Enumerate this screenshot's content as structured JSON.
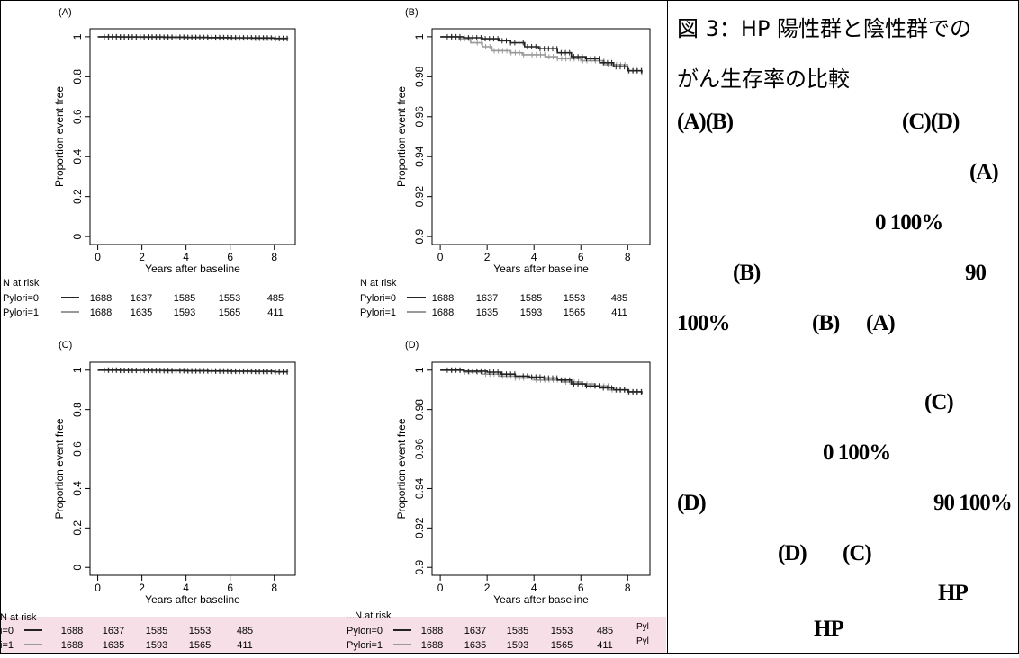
{
  "chart_data": [
    {
      "type": "line",
      "panel_label": "(A)",
      "xlabel": "Years after baseline",
      "ylabel": "Proportion event free",
      "xlim": [
        0,
        8.6
      ],
      "ylim": [
        0,
        1
      ],
      "x_ticks": [
        "0",
        "2",
        "4",
        "6",
        "8"
      ],
      "y_ticks": [
        "0",
        "0.2",
        "0.4",
        "0.6",
        "0.8",
        "1"
      ],
      "series": [
        {
          "name": "Pylori=0",
          "color": "#222222",
          "x": [
            0,
            1,
            2,
            3,
            4,
            5,
            6,
            7,
            8,
            8.6
          ],
          "y": [
            1.0,
            0.999,
            0.999,
            0.998,
            0.997,
            0.996,
            0.995,
            0.994,
            0.992,
            0.991
          ]
        },
        {
          "name": "Pylori=1",
          "color": "#999999",
          "x": [
            0,
            1,
            2,
            3,
            4,
            5,
            6,
            7,
            8,
            8.6
          ],
          "y": [
            1.0,
            0.998,
            0.997,
            0.996,
            0.995,
            0.994,
            0.993,
            0.992,
            0.99,
            0.989
          ]
        }
      ],
      "at_risk": {
        "title": "N at risk",
        "rows": [
          {
            "label": "Pylori=0",
            "values": [
              "1688",
              "1637",
              "1585",
              "1553",
              "485"
            ]
          },
          {
            "label": "Pylori=1",
            "values": [
              "1688",
              "1635",
              "1593",
              "1565",
              "411"
            ]
          }
        ]
      }
    },
    {
      "type": "line",
      "panel_label": "(B)",
      "xlabel": "Years after baseline",
      "ylabel": "Proportion event free",
      "xlim": [
        0,
        8.6
      ],
      "ylim": [
        0.9,
        1
      ],
      "x_ticks": [
        "0",
        "2",
        "4",
        "6",
        "8"
      ],
      "y_ticks": [
        "0.9",
        "0.92",
        "0.94",
        "0.96",
        "0.98",
        "1"
      ],
      "series": [
        {
          "name": "Pylori=0",
          "color": "#222222",
          "x": [
            0,
            1,
            1.8,
            2.5,
            3,
            3.6,
            4.2,
            5,
            5.6,
            6.2,
            6.8,
            7.4,
            8,
            8.6
          ],
          "y": [
            1.0,
            0.9995,
            0.999,
            0.998,
            0.997,
            0.995,
            0.994,
            0.992,
            0.99,
            0.989,
            0.987,
            0.985,
            0.983,
            0.982
          ]
        },
        {
          "name": "Pylori=1",
          "color": "#999999",
          "x": [
            0,
            0.8,
            1.3,
            1.8,
            2.2,
            3,
            3.5,
            4,
            4.5,
            5,
            6,
            7,
            8,
            8.6
          ],
          "y": [
            1.0,
            0.999,
            0.997,
            0.995,
            0.993,
            0.992,
            0.991,
            0.991,
            0.99,
            0.989,
            0.988,
            0.986,
            0.983,
            0.981
          ]
        }
      ],
      "at_risk": {
        "title": "N at risk",
        "rows": [
          {
            "label": "Pylori=0",
            "values": [
              "1688",
              "1637",
              "1585",
              "1553",
              "485"
            ]
          },
          {
            "label": "Pylori=1",
            "values": [
              "1688",
              "1635",
              "1593",
              "1565",
              "411"
            ]
          }
        ]
      }
    },
    {
      "type": "line",
      "panel_label": "(C)",
      "xlabel": "Years after baseline",
      "ylabel": "Proportion event free",
      "xlim": [
        0,
        8.6
      ],
      "ylim": [
        0,
        1
      ],
      "x_ticks": [
        "0",
        "2",
        "4",
        "6",
        "8"
      ],
      "y_ticks": [
        "0",
        "0.2",
        "0.4",
        "0.6",
        "0.8",
        "1"
      ],
      "series": [
        {
          "name": "Pylori=0",
          "color": "#222222",
          "x": [
            0,
            1,
            2,
            3,
            4,
            5,
            6,
            7,
            8,
            8.6
          ],
          "y": [
            1.0,
            0.999,
            0.999,
            0.998,
            0.997,
            0.996,
            0.995,
            0.994,
            0.992,
            0.991
          ]
        },
        {
          "name": "Pylori=1",
          "color": "#999999",
          "x": [
            0,
            1,
            2,
            3,
            4,
            5,
            6,
            7,
            8,
            8.6
          ],
          "y": [
            1.0,
            0.998,
            0.997,
            0.996,
            0.995,
            0.994,
            0.993,
            0.992,
            0.99,
            0.989
          ]
        }
      ],
      "at_risk": {
        "title": "N at risk",
        "rows": [
          {
            "label": "i=0",
            "values": [
              "1688",
              "1637",
              "1585",
              "1553",
              "485"
            ]
          },
          {
            "label": "i=1",
            "values": [
              "1688",
              "1635",
              "1593",
              "1565",
              "411"
            ]
          }
        ]
      }
    },
    {
      "type": "line",
      "panel_label": "(D)",
      "xlabel": "Years after baseline",
      "ylabel": "Proportion event free",
      "xlim": [
        0,
        8.6
      ],
      "ylim": [
        0.9,
        1
      ],
      "x_ticks": [
        "0",
        "2",
        "4",
        "6",
        "8"
      ],
      "y_ticks": [
        "0.9",
        "0.92",
        "0.94",
        "0.96",
        "0.98",
        "1"
      ],
      "series": [
        {
          "name": "Pylori=0",
          "color": "#222222",
          "x": [
            0,
            1,
            2,
            2.6,
            3.2,
            3.8,
            4.4,
            5,
            5.6,
            6.2,
            6.8,
            7.4,
            8,
            8.6
          ],
          "y": [
            1.0,
            0.9995,
            0.999,
            0.998,
            0.997,
            0.9965,
            0.996,
            0.995,
            0.993,
            0.992,
            0.991,
            0.99,
            0.989,
            0.988
          ]
        },
        {
          "name": "Pylori=1",
          "color": "#999999",
          "x": [
            0,
            1,
            1.8,
            2.5,
            3.2,
            4,
            4.6,
            5.2,
            6,
            6.6,
            7.2,
            8,
            8.6
          ],
          "y": [
            1.0,
            0.999,
            0.998,
            0.997,
            0.996,
            0.995,
            0.995,
            0.994,
            0.993,
            0.992,
            0.99,
            0.989,
            0.988
          ]
        }
      ],
      "at_risk": {
        "title": "...N.at risk",
        "rows": [
          {
            "label": "Pylori=0",
            "values": [
              "1688",
              "1637",
              "1585",
              "1553",
              "485"
            ]
          },
          {
            "label": "Pylori=1",
            "values": [
              "1688",
              "1635",
              "1593",
              "1565",
              "411"
            ]
          }
        ],
        "overflow": [
          "Pyl",
          "Pyl"
        ]
      }
    }
  ],
  "caption": {
    "title_line1": "図 3：HP 陽性群と陰性群での",
    "title_line2": "がん生存率の比較",
    "fragments": [
      "(A)(B)",
      "(C)(D)",
      "(A)",
      "0 100%",
      "(B)",
      "90",
      "100%",
      "(B)",
      "(A)",
      "(C)",
      "0 100%",
      "(D)",
      "90 100%",
      "(D)",
      "(C)",
      "HP",
      "HP"
    ]
  }
}
